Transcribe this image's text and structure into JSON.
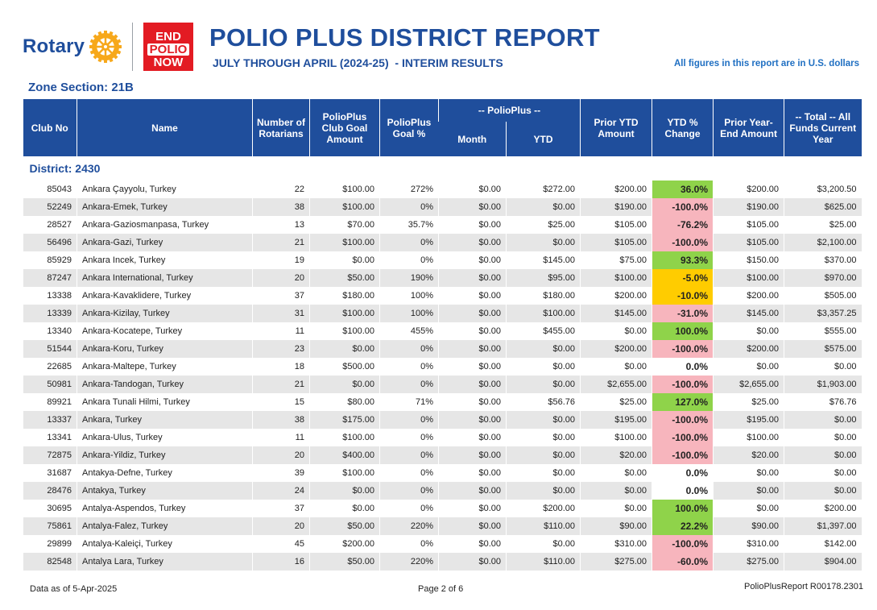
{
  "header": {
    "rotary_wordmark": "Rotary",
    "end_polio_logo": [
      "END",
      "POLIO",
      "NOW"
    ],
    "title": "POLIO PLUS DISTRICT REPORT",
    "subtitle": "JULY THROUGH APRIL (2024-25)  - INTERIM RESULTS",
    "usd_note": "All figures in this report are in U.S. dollars",
    "zone": "Zone Section: 21B"
  },
  "colors": {
    "brand_blue": "#1f4e9c",
    "positive": "#8fd34a",
    "negative": "#f7b5bd",
    "slight_negative": "#ffcc00",
    "end_polio_red": "#e31b23"
  },
  "columns": {
    "club_no": "Club  No",
    "name": "Name",
    "rotarians": "Number of Rotarians",
    "goal_amount": "PolioPlus Club Goal Amount",
    "goal_pct": "PolioPlus Goal %",
    "polioplus_group": "-- PolioPlus --",
    "month": "Month",
    "ytd": "YTD",
    "prior_ytd": "Prior YTD Amount",
    "ytd_change": "YTD % Change",
    "prior_year_end": "Prior Year-End Amount",
    "total_funds": "-- Total  -- All Funds Current Year"
  },
  "district": "District: 2430",
  "rows": [
    {
      "club_no": "85043",
      "name": "Ankara Çayyolu, Turkey",
      "rotarians": "22",
      "goal": "$100.00",
      "goal_pct": "272%",
      "month": "$0.00",
      "ytd": "$272.00",
      "prior_ytd": "$200.00",
      "change": "36.0%",
      "change_status": "green",
      "prior_year_end": "$200.00",
      "total": "$3,200.50"
    },
    {
      "club_no": "52249",
      "name": "Ankara-Emek, Turkey",
      "rotarians": "38",
      "goal": "$100.00",
      "goal_pct": "0%",
      "month": "$0.00",
      "ytd": "$0.00",
      "prior_ytd": "$190.00",
      "change": "-100.0%",
      "change_status": "red",
      "prior_year_end": "$190.00",
      "total": "$625.00"
    },
    {
      "club_no": "28527",
      "name": "Ankara-Gaziosmanpasa, Turkey",
      "rotarians": "13",
      "goal": "$70.00",
      "goal_pct": "35.7%",
      "month": "$0.00",
      "ytd": "$25.00",
      "prior_ytd": "$105.00",
      "change": "-76.2%",
      "change_status": "red",
      "prior_year_end": "$105.00",
      "total": "$25.00"
    },
    {
      "club_no": "56496",
      "name": "Ankara-Gazi, Turkey",
      "rotarians": "21",
      "goal": "$100.00",
      "goal_pct": "0%",
      "month": "$0.00",
      "ytd": "$0.00",
      "prior_ytd": "$105.00",
      "change": "-100.0%",
      "change_status": "red",
      "prior_year_end": "$105.00",
      "total": "$2,100.00"
    },
    {
      "club_no": "85929",
      "name": "Ankara Incek, Turkey",
      "rotarians": "19",
      "goal": "$0.00",
      "goal_pct": "0%",
      "month": "$0.00",
      "ytd": "$145.00",
      "prior_ytd": "$75.00",
      "change": "93.3%",
      "change_status": "green",
      "prior_year_end": "$150.00",
      "total": "$370.00"
    },
    {
      "club_no": "87247",
      "name": "Ankara International, Turkey",
      "rotarians": "20",
      "goal": "$50.00",
      "goal_pct": "190%",
      "month": "$0.00",
      "ytd": "$95.00",
      "prior_ytd": "$100.00",
      "change": "-5.0%",
      "change_status": "orange",
      "prior_year_end": "$100.00",
      "total": "$970.00"
    },
    {
      "club_no": "13338",
      "name": "Ankara-Kavaklidere, Turkey",
      "rotarians": "37",
      "goal": "$180.00",
      "goal_pct": "100%",
      "month": "$0.00",
      "ytd": "$180.00",
      "prior_ytd": "$200.00",
      "change": "-10.0%",
      "change_status": "orange",
      "prior_year_end": "$200.00",
      "total": "$505.00"
    },
    {
      "club_no": "13339",
      "name": "Ankara-Kizilay, Turkey",
      "rotarians": "31",
      "goal": "$100.00",
      "goal_pct": "100%",
      "month": "$0.00",
      "ytd": "$100.00",
      "prior_ytd": "$145.00",
      "change": "-31.0%",
      "change_status": "red",
      "prior_year_end": "$145.00",
      "total": "$3,357.25"
    },
    {
      "club_no": "13340",
      "name": "Ankara-Kocatepe, Turkey",
      "rotarians": "11",
      "goal": "$100.00",
      "goal_pct": "455%",
      "month": "$0.00",
      "ytd": "$455.00",
      "prior_ytd": "$0.00",
      "change": "100.0%",
      "change_status": "green",
      "prior_year_end": "$0.00",
      "total": "$555.00"
    },
    {
      "club_no": "51544",
      "name": "Ankara-Koru, Turkey",
      "rotarians": "23",
      "goal": "$0.00",
      "goal_pct": "0%",
      "month": "$0.00",
      "ytd": "$0.00",
      "prior_ytd": "$200.00",
      "change": "-100.0%",
      "change_status": "red",
      "prior_year_end": "$200.00",
      "total": "$575.00"
    },
    {
      "club_no": "22685",
      "name": "Ankara-Maltepe, Turkey",
      "rotarians": "18",
      "goal": "$500.00",
      "goal_pct": "0%",
      "month": "$0.00",
      "ytd": "$0.00",
      "prior_ytd": "$0.00",
      "change": "0.0%",
      "change_status": "plain",
      "prior_year_end": "$0.00",
      "total": "$0.00"
    },
    {
      "club_no": "50981",
      "name": "Ankara-Tandogan, Turkey",
      "rotarians": "21",
      "goal": "$0.00",
      "goal_pct": "0%",
      "month": "$0.00",
      "ytd": "$0.00",
      "prior_ytd": "$2,655.00",
      "change": "-100.0%",
      "change_status": "red",
      "prior_year_end": "$2,655.00",
      "total": "$1,903.00"
    },
    {
      "club_no": "89921",
      "name": "Ankara Tunali Hilmi, Turkey",
      "rotarians": "15",
      "goal": "$80.00",
      "goal_pct": "71%",
      "month": "$0.00",
      "ytd": "$56.76",
      "prior_ytd": "$25.00",
      "change": "127.0%",
      "change_status": "green",
      "prior_year_end": "$25.00",
      "total": "$76.76"
    },
    {
      "club_no": "13337",
      "name": "Ankara, Turkey",
      "rotarians": "38",
      "goal": "$175.00",
      "goal_pct": "0%",
      "month": "$0.00",
      "ytd": "$0.00",
      "prior_ytd": "$195.00",
      "change": "-100.0%",
      "change_status": "red",
      "prior_year_end": "$195.00",
      "total": "$0.00"
    },
    {
      "club_no": "13341",
      "name": "Ankara-Ulus, Turkey",
      "rotarians": "11",
      "goal": "$100.00",
      "goal_pct": "0%",
      "month": "$0.00",
      "ytd": "$0.00",
      "prior_ytd": "$100.00",
      "change": "-100.0%",
      "change_status": "red",
      "prior_year_end": "$100.00",
      "total": "$0.00"
    },
    {
      "club_no": "72875",
      "name": "Ankara-Yildiz, Turkey",
      "rotarians": "20",
      "goal": "$400.00",
      "goal_pct": "0%",
      "month": "$0.00",
      "ytd": "$0.00",
      "prior_ytd": "$20.00",
      "change": "-100.0%",
      "change_status": "red",
      "prior_year_end": "$20.00",
      "total": "$0.00"
    },
    {
      "club_no": "31687",
      "name": "Antakya-Defne, Turkey",
      "rotarians": "39",
      "goal": "$100.00",
      "goal_pct": "0%",
      "month": "$0.00",
      "ytd": "$0.00",
      "prior_ytd": "$0.00",
      "change": "0.0%",
      "change_status": "plain",
      "prior_year_end": "$0.00",
      "total": "$0.00"
    },
    {
      "club_no": "28476",
      "name": "Antakya, Turkey",
      "rotarians": "24",
      "goal": "$0.00",
      "goal_pct": "0%",
      "month": "$0.00",
      "ytd": "$0.00",
      "prior_ytd": "$0.00",
      "change": "0.0%",
      "change_status": "plain",
      "prior_year_end": "$0.00",
      "total": "$0.00"
    },
    {
      "club_no": "30695",
      "name": "Antalya-Aspendos, Turkey",
      "rotarians": "37",
      "goal": "$0.00",
      "goal_pct": "0%",
      "month": "$0.00",
      "ytd": "$200.00",
      "prior_ytd": "$0.00",
      "change": "100.0%",
      "change_status": "green",
      "prior_year_end": "$0.00",
      "total": "$200.00"
    },
    {
      "club_no": "75861",
      "name": "Antalya-Falez, Turkey",
      "rotarians": "20",
      "goal": "$50.00",
      "goal_pct": "220%",
      "month": "$0.00",
      "ytd": "$110.00",
      "prior_ytd": "$90.00",
      "change": "22.2%",
      "change_status": "green",
      "prior_year_end": "$90.00",
      "total": "$1,397.00"
    },
    {
      "club_no": "29899",
      "name": "Antalya-Kaleiçi, Turkey",
      "rotarians": "45",
      "goal": "$200.00",
      "goal_pct": "0%",
      "month": "$0.00",
      "ytd": "$0.00",
      "prior_ytd": "$310.00",
      "change": "-100.0%",
      "change_status": "red",
      "prior_year_end": "$310.00",
      "total": "$142.00"
    },
    {
      "club_no": "82548",
      "name": "Antalya Lara, Turkey",
      "rotarians": "16",
      "goal": "$50.00",
      "goal_pct": "220%",
      "month": "$0.00",
      "ytd": "$110.00",
      "prior_ytd": "$275.00",
      "change": "-60.0%",
      "change_status": "red",
      "prior_year_end": "$275.00",
      "total": "$904.00"
    }
  ],
  "footer": {
    "data_as_of": "Data as of 5-Apr-2025",
    "page": "Page 2 of 6",
    "report_id": "PolioPlusReport R00178.2301"
  }
}
